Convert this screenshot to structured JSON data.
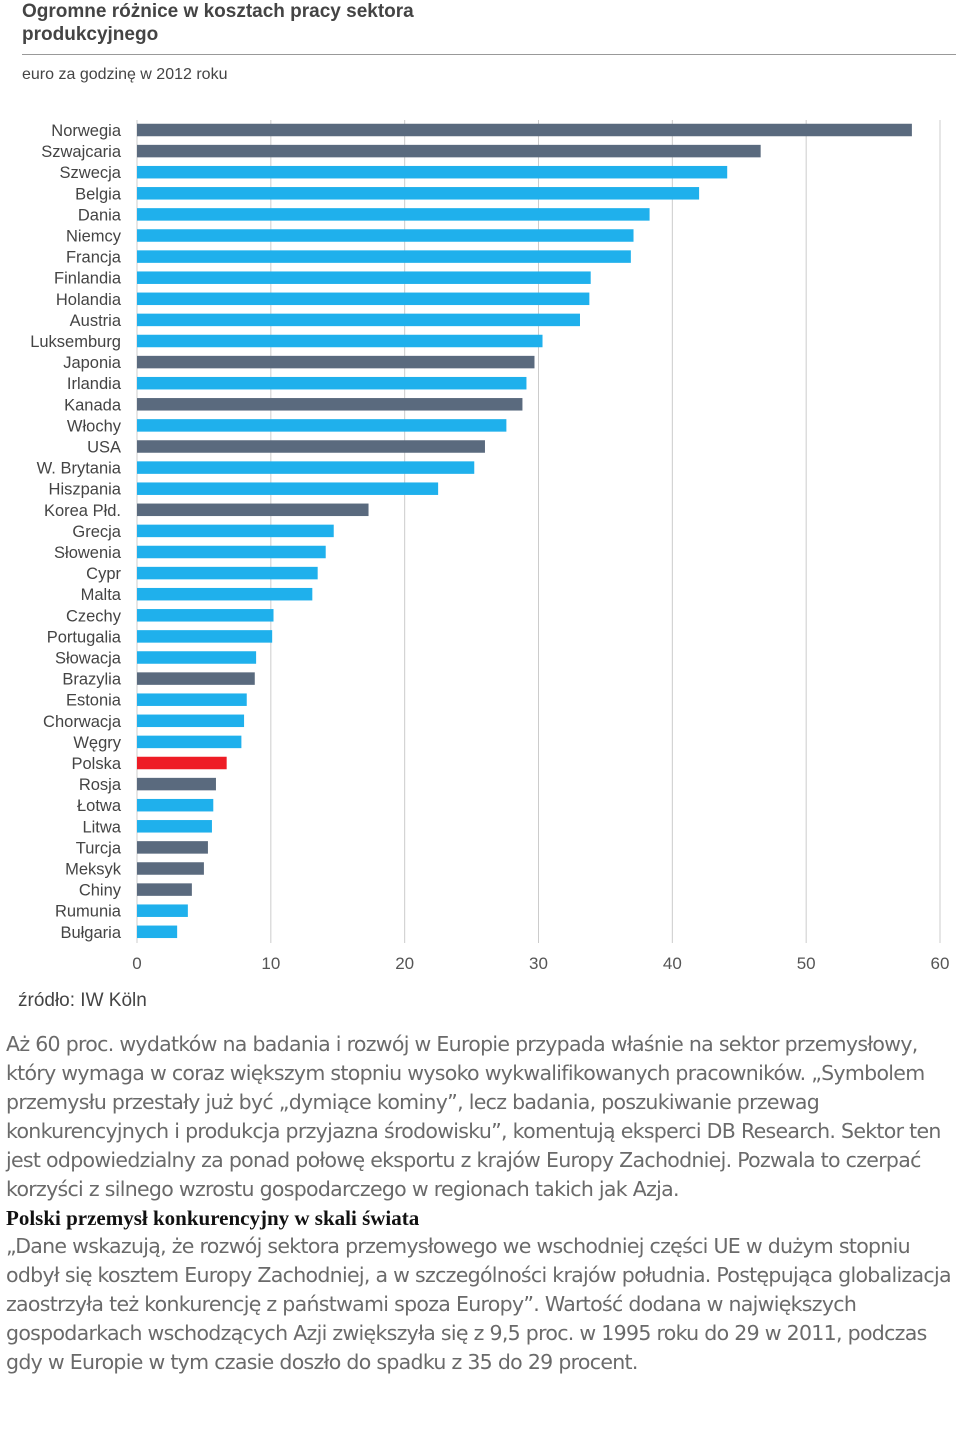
{
  "header": {
    "title": "Ogromne różnice w kosztach pracy sektora produkcyjnego",
    "subtitle": "euro za godzinę w 2012 roku"
  },
  "colors": {
    "dark": "#5a6a7e",
    "light": "#1fb0ec",
    "highlight": "#ee1c25",
    "grid": "#cccccc"
  },
  "chart_data": {
    "type": "bar",
    "orientation": "horizontal",
    "title": "Ogromne różnice w kosztach pracy sektora produkcyjnego",
    "subtitle": "euro za godzinę w 2012 roku",
    "xlim": [
      0,
      60
    ],
    "xticks": [
      0,
      10,
      20,
      30,
      40,
      50,
      60
    ],
    "grid": true,
    "categories": [
      "Norwegia",
      "Szwajcaria",
      "Szwecja",
      "Belgia",
      "Dania",
      "Niemcy",
      "Francja",
      "Finlandia",
      "Holandia",
      "Austria",
      "Luksemburg",
      "Japonia",
      "Irlandia",
      "Kanada",
      "Włochy",
      "USA",
      "W. Brytania",
      "Hiszpania",
      "Korea Płd.",
      "Grecja",
      "Słowenia",
      "Cypr",
      "Malta",
      "Czechy",
      "Portugalia",
      "Słowacja",
      "Brazylia",
      "Estonia",
      "Chorwacja",
      "Węgry",
      "Polska",
      "Rosja",
      "Łotwa",
      "Litwa",
      "Turcja",
      "Meksyk",
      "Chiny",
      "Rumunia",
      "Bułgaria"
    ],
    "values": [
      57.9,
      46.6,
      44.1,
      42.0,
      38.3,
      37.1,
      36.9,
      33.9,
      33.8,
      33.1,
      30.3,
      29.7,
      29.1,
      28.8,
      27.6,
      26.0,
      25.2,
      22.5,
      17.3,
      14.7,
      14.1,
      13.5,
      13.1,
      10.2,
      10.1,
      8.9,
      8.8,
      8.2,
      8.0,
      7.8,
      6.7,
      5.9,
      5.7,
      5.6,
      5.3,
      5.0,
      4.1,
      3.8,
      3.0
    ],
    "color_keys": [
      "dark",
      "dark",
      "light",
      "light",
      "light",
      "light",
      "light",
      "light",
      "light",
      "light",
      "light",
      "dark",
      "light",
      "dark",
      "light",
      "dark",
      "light",
      "light",
      "dark",
      "light",
      "light",
      "light",
      "light",
      "light",
      "light",
      "light",
      "dark",
      "light",
      "light",
      "light",
      "highlight",
      "dark",
      "light",
      "light",
      "dark",
      "dark",
      "dark",
      "light",
      "light"
    ]
  },
  "source": "źródło: IW Köln",
  "article": {
    "p1": "Aż 60 proc. wydatków na badania i rozwój w Europie przypada właśnie na sektor przemysłowy, który wymaga w coraz większym stopniu wysoko wykwalifikowanych pracowników. „Symbolem przemysłu przestały już być „dymiące kominy”, lecz badania, poszukiwanie przewag konkurencyjnych i produkcja przyjazna środowisku”, komentują eksperci DB Research. Sektor ten jest odpowiedzialny za ponad połowę eksportu z krajów Europy Zachodniej. Pozwala to czerpać korzyści z silnego wzrostu gospodarczego w regionach takich jak Azja.",
    "heading": "Polski przemysł konkurencyjny w skali świata",
    "p2": "„Dane wskazują, że rozwój sektora przemysłowego we wschodniej części UE w dużym stopniu odbył się kosztem Europy Zachodniej, a w szczególności krajów południa. Postępująca globalizacja zaostrzyła też konkurencję z państwami spoza Europy”. Wartość dodana w największych gospodarkach wschodzących Azji zwiększyła się z 9,5 proc. w 1995 roku do 29 w 2011, podczas gdy w Europie w tym czasie doszło do spadku z 35 do 29 procent."
  }
}
